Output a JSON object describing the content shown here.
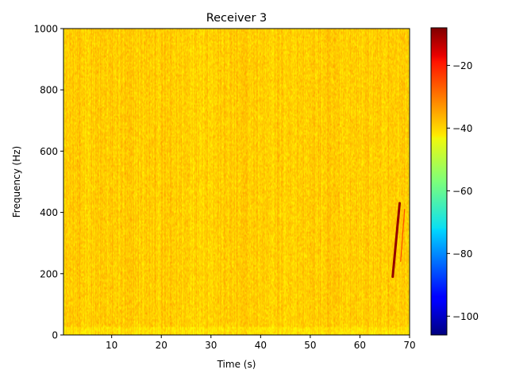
{
  "chart_data": {
    "type": "heatmap",
    "title": "Receiver 3",
    "xlabel": "Time (s)",
    "ylabel": "Frequency (Hz)",
    "xlim": [
      0.3,
      70
    ],
    "ylim": [
      0,
      1000
    ],
    "x_ticks": [
      10,
      20,
      30,
      40,
      50,
      60,
      70
    ],
    "x_tick_labels": [
      "10",
      "20",
      "30",
      "40",
      "50",
      "60",
      "70"
    ],
    "y_ticks": [
      0,
      200,
      400,
      600,
      800,
      1000
    ],
    "y_tick_labels": [
      "0",
      "200",
      "400",
      "600",
      "800",
      "1000"
    ],
    "colorbar": {
      "colormap": "jet",
      "vmin": -106,
      "vmax": -8,
      "ticks": [
        -100,
        -80,
        -60,
        -40,
        -20
      ],
      "tick_labels": [
        "−100",
        "−80",
        "−60",
        "−40",
        "−20"
      ]
    },
    "background_level_db": -40,
    "background_variation_db": 6,
    "features": [
      {
        "type": "chirp",
        "t_start": 66.6,
        "t_end": 68.0,
        "f_start": 190,
        "f_end": 430,
        "level_db": -10
      },
      {
        "type": "chirp",
        "t_start": 68.2,
        "t_end": 69.0,
        "f_start": 240,
        "f_end": 410,
        "level_db": -28
      }
    ]
  }
}
